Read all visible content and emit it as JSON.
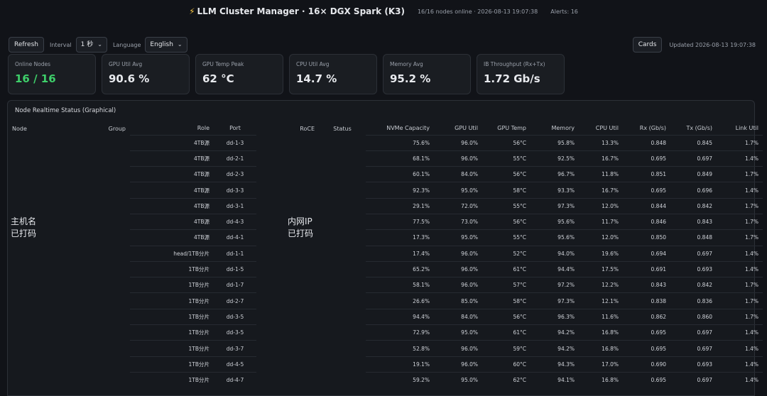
{
  "header": {
    "title": "LLM Cluster Manager · 16× DGX Spark (K3)",
    "nodes_online": "16/16 nodes online · 2026-08-13 19:07:38",
    "alerts": "Alerts: 16"
  },
  "toolbar": {
    "refresh_label": "Refresh",
    "interval_label": "Interval",
    "interval_value": "1 秒",
    "language_label": "Language",
    "language_value": "English",
    "cards_label": "Cards",
    "updated": "Updated 2026-08-13 19:07:38"
  },
  "cards": [
    {
      "label": "Online Nodes",
      "value": "16 / 16"
    },
    {
      "label": "GPU Util Avg",
      "value": "90.6 %"
    },
    {
      "label": "GPU Temp Peak",
      "value": "62 °C"
    },
    {
      "label": "CPU Util Avg",
      "value": "14.7 %"
    },
    {
      "label": "Memory Avg",
      "value": "95.2 %"
    },
    {
      "label": "IB Throughput (Rx+Tx)",
      "value": "1.72 Gb/s"
    }
  ],
  "colors": {
    "online_accent": "#3ecf6a"
  },
  "panel": {
    "title": "Node Realtime Status (Graphical)",
    "hostname_overlay": [
      "主机名",
      "已打码"
    ],
    "ip_overlay": [
      "内网IP",
      "已打码"
    ],
    "columns": [
      "Node",
      "Group",
      "Role",
      "Port",
      "RoCE",
      "Status",
      "NVMe Capacity",
      "GPU Util",
      "GPU Temp",
      "Memory",
      "CPU Util",
      "Rx (Gb/s)",
      "Tx (Gb/s)",
      "Link Util"
    ],
    "rows": [
      [
        "4TB源",
        "dd-1-3",
        "75.6%",
        "96.0%",
        "56°C",
        "95.8%",
        "13.3%",
        "0.848",
        "0.845",
        "1.7%"
      ],
      [
        "4TB源",
        "dd-2-1",
        "68.1%",
        "96.0%",
        "55°C",
        "92.5%",
        "16.7%",
        "0.695",
        "0.697",
        "1.4%"
      ],
      [
        "4TB源",
        "dd-2-3",
        "60.1%",
        "84.0%",
        "56°C",
        "96.7%",
        "11.8%",
        "0.851",
        "0.849",
        "1.7%"
      ],
      [
        "4TB源",
        "dd-3-3",
        "92.3%",
        "95.0%",
        "58°C",
        "93.3%",
        "16.7%",
        "0.695",
        "0.696",
        "1.4%"
      ],
      [
        "4TB源",
        "dd-3-1",
        "29.1%",
        "72.0%",
        "55°C",
        "97.3%",
        "12.0%",
        "0.844",
        "0.842",
        "1.7%"
      ],
      [
        "4TB源",
        "dd-4-3",
        "77.5%",
        "73.0%",
        "56°C",
        "95.6%",
        "11.7%",
        "0.846",
        "0.843",
        "1.7%"
      ],
      [
        "4TB源",
        "dd-4-1",
        "17.3%",
        "95.0%",
        "55°C",
        "95.6%",
        "12.0%",
        "0.850",
        "0.848",
        "1.7%"
      ],
      [
        "head/1TB分片",
        "dd-1-1",
        "17.4%",
        "96.0%",
        "52°C",
        "94.0%",
        "19.6%",
        "0.694",
        "0.697",
        "1.4%"
      ],
      [
        "1TB分片",
        "dd-1-5",
        "65.2%",
        "96.0%",
        "61°C",
        "94.4%",
        "17.5%",
        "0.691",
        "0.693",
        "1.4%"
      ],
      [
        "1TB分片",
        "dd-1-7",
        "58.1%",
        "96.0%",
        "57°C",
        "97.2%",
        "12.2%",
        "0.843",
        "0.842",
        "1.7%"
      ],
      [
        "1TB分片",
        "dd-2-7",
        "26.6%",
        "85.0%",
        "58°C",
        "97.3%",
        "12.1%",
        "0.838",
        "0.836",
        "1.7%"
      ],
      [
        "1TB分片",
        "dd-3-5",
        "94.4%",
        "84.0%",
        "56°C",
        "96.3%",
        "11.6%",
        "0.862",
        "0.860",
        "1.7%"
      ],
      [
        "1TB分片",
        "dd-3-5",
        "72.9%",
        "95.0%",
        "61°C",
        "94.2%",
        "16.8%",
        "0.695",
        "0.697",
        "1.4%"
      ],
      [
        "1TB分片",
        "dd-3-7",
        "52.8%",
        "96.0%",
        "59°C",
        "94.2%",
        "16.8%",
        "0.695",
        "0.697",
        "1.4%"
      ],
      [
        "1TB分片",
        "dd-4-5",
        "19.1%",
        "96.0%",
        "60°C",
        "94.3%",
        "17.0%",
        "0.690",
        "0.693",
        "1.4%"
      ],
      [
        "1TB分片",
        "dd-4-7",
        "59.2%",
        "95.0%",
        "62°C",
        "94.1%",
        "16.8%",
        "0.695",
        "0.697",
        "1.4%"
      ]
    ]
  }
}
